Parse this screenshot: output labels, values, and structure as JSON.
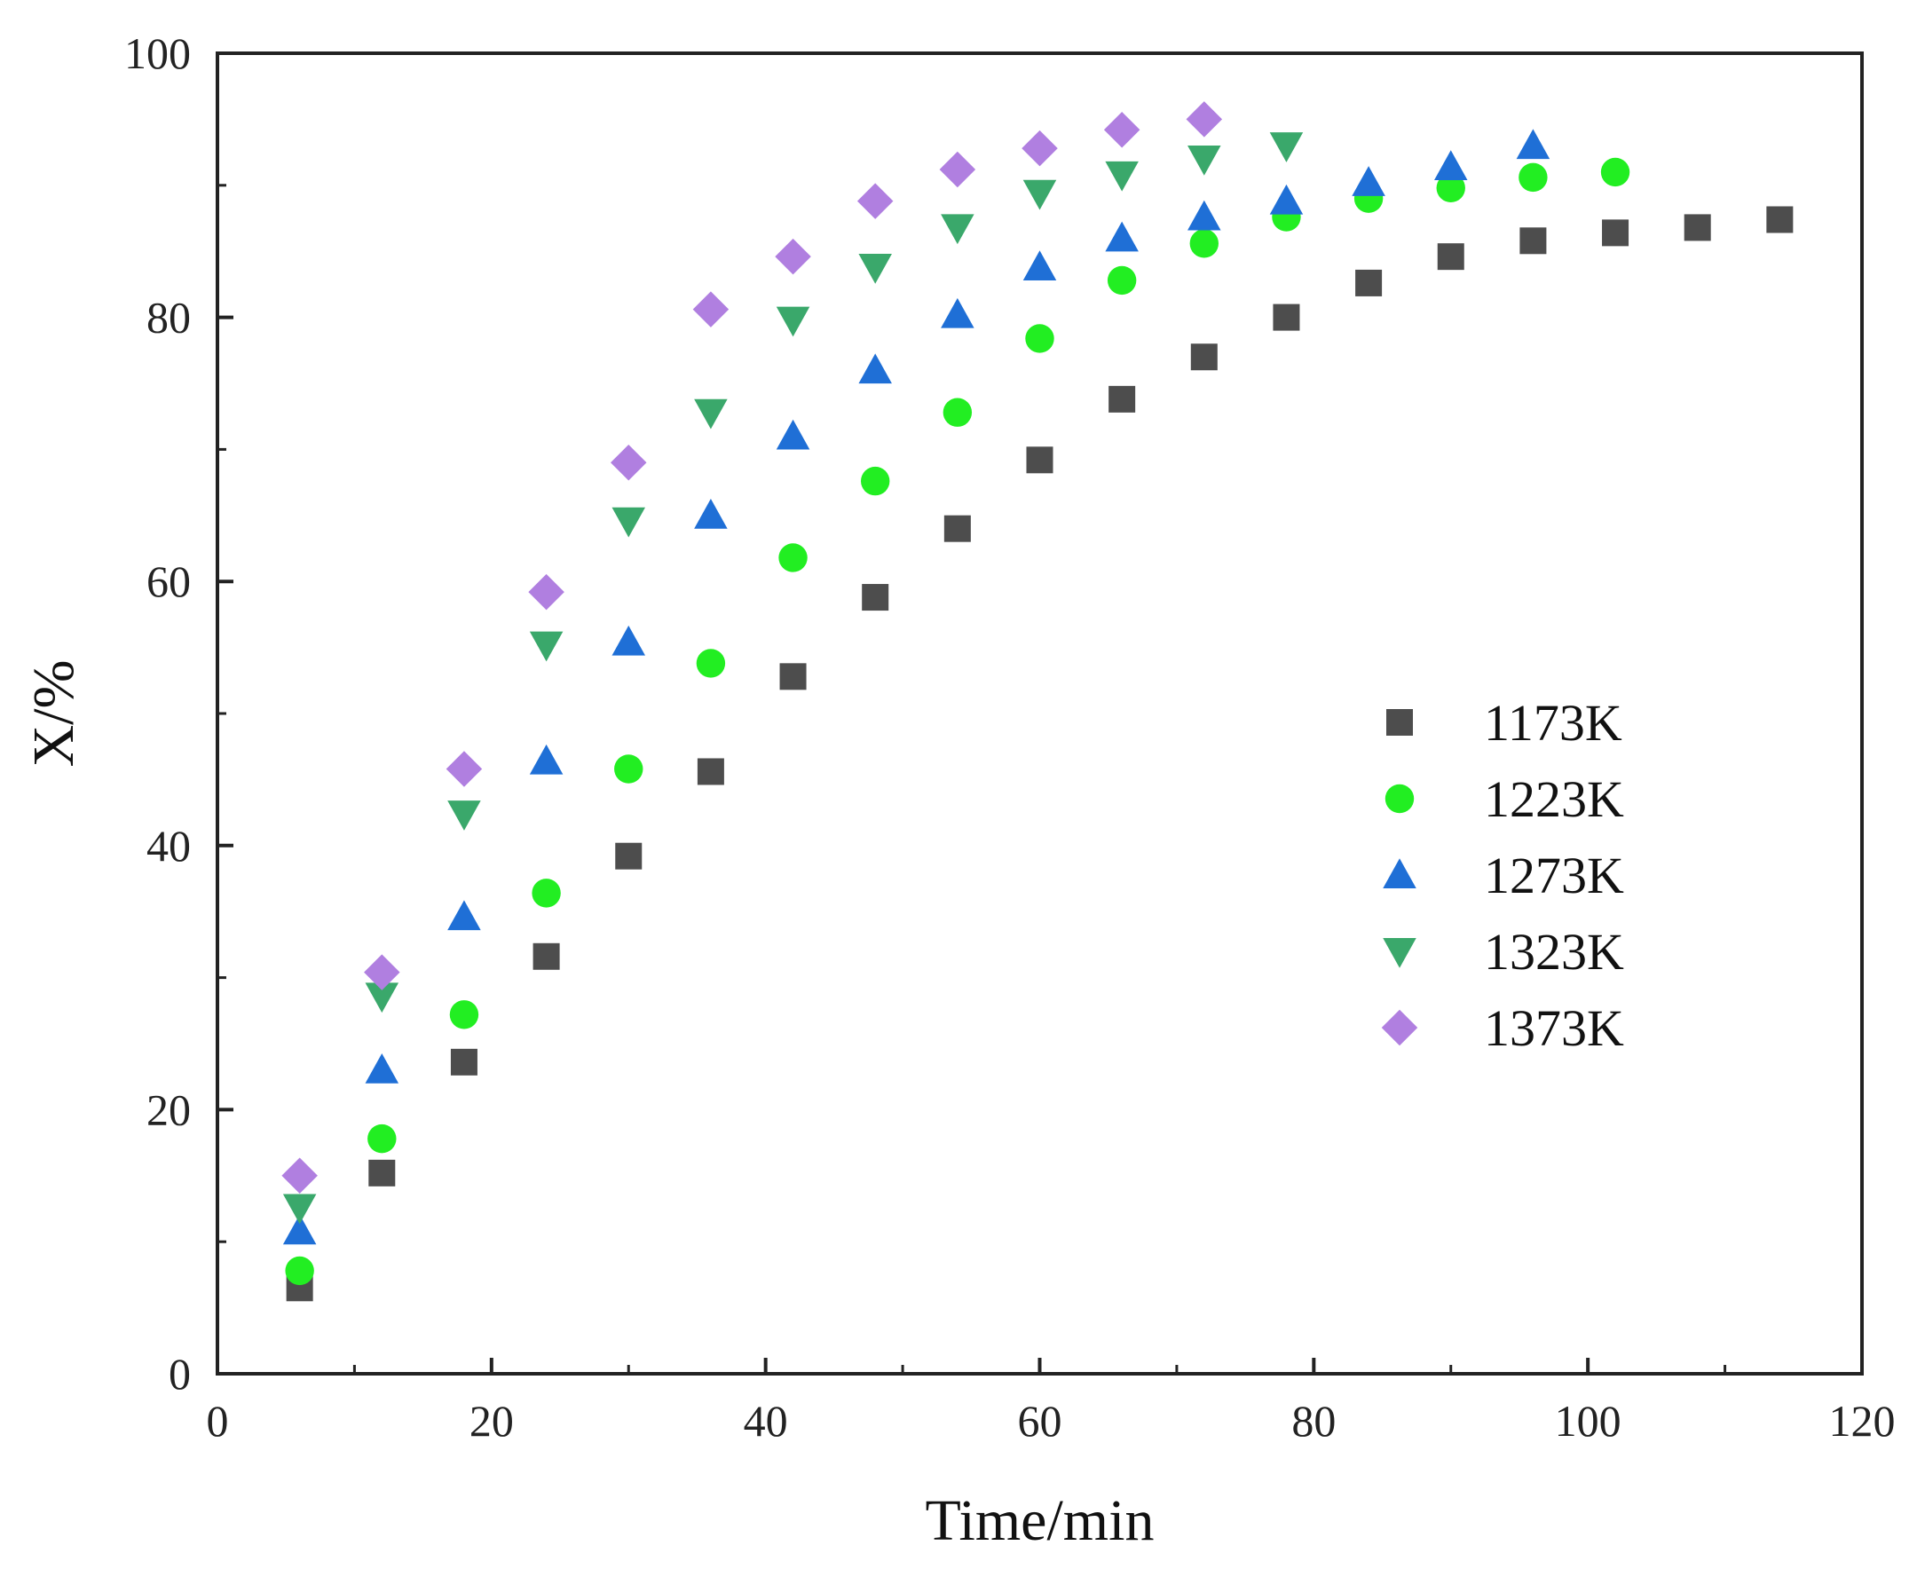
{
  "chart_data": {
    "type": "scatter",
    "title": "",
    "xlabel": "Time/min",
    "ylabel": "X/%",
    "xlim": [
      0,
      120
    ],
    "ylim": [
      0,
      100
    ],
    "xticks": [
      0,
      20,
      40,
      60,
      80,
      100,
      120
    ],
    "yticks": [
      0,
      20,
      40,
      60,
      80,
      100
    ],
    "x_tick_labels": [
      "0",
      "20",
      "40",
      "60",
      "80",
      "100",
      "120"
    ],
    "y_tick_labels": [
      "0",
      "20",
      "40",
      "60",
      "80",
      "100"
    ],
    "grid": false,
    "legend_position": "right-middle",
    "series": [
      {
        "name": "1173K",
        "marker": "square",
        "color": "#4d4d4d",
        "x": [
          6,
          12,
          18,
          24,
          30,
          36,
          42,
          48,
          54,
          60,
          66,
          72,
          78,
          84,
          90,
          96,
          102,
          108,
          114
        ],
        "y": [
          6.5,
          15.2,
          23.6,
          31.6,
          39.2,
          45.6,
          52.8,
          58.8,
          64,
          69.2,
          73.8,
          77,
          80,
          82.6,
          84.6,
          85.8,
          86.4,
          86.8,
          87.4
        ]
      },
      {
        "name": "1223K",
        "marker": "circle",
        "color": "#22ee22",
        "x": [
          6,
          12,
          18,
          24,
          30,
          36,
          42,
          48,
          54,
          60,
          66,
          72,
          78,
          84,
          90,
          96,
          102
        ],
        "y": [
          7.8,
          17.8,
          27.2,
          36.4,
          45.8,
          53.8,
          61.8,
          67.6,
          72.8,
          78.4,
          82.8,
          85.6,
          87.6,
          89,
          89.8,
          90.6,
          91
        ]
      },
      {
        "name": "1273K",
        "marker": "triangle-up",
        "color": "#1f6fd6",
        "x": [
          6,
          12,
          18,
          24,
          30,
          36,
          42,
          48,
          54,
          60,
          66,
          72,
          78,
          84,
          90,
          96
        ],
        "y": [
          10.8,
          23,
          34.6,
          46.4,
          55.4,
          65,
          71,
          76,
          80.2,
          83.8,
          86,
          87.6,
          88.8,
          90.2,
          91.4,
          93
        ]
      },
      {
        "name": "1323K",
        "marker": "triangle-down",
        "color": "#3aa86b",
        "x": [
          6,
          12,
          18,
          24,
          30,
          36,
          42,
          48,
          54,
          60,
          66,
          72,
          78
        ],
        "y": [
          12.6,
          28.6,
          42.4,
          55.2,
          64.6,
          72.8,
          79.8,
          83.8,
          86.8,
          89.4,
          90.8,
          92,
          93
        ]
      },
      {
        "name": "1373K",
        "marker": "diamond",
        "color": "#b07fe0",
        "x": [
          6,
          12,
          18,
          24,
          30,
          36,
          42,
          48,
          54,
          60,
          66,
          72
        ],
        "y": [
          15,
          30.4,
          45.8,
          59.2,
          69,
          80.6,
          84.6,
          88.8,
          91.2,
          92.8,
          94.2,
          95
        ]
      }
    ]
  }
}
